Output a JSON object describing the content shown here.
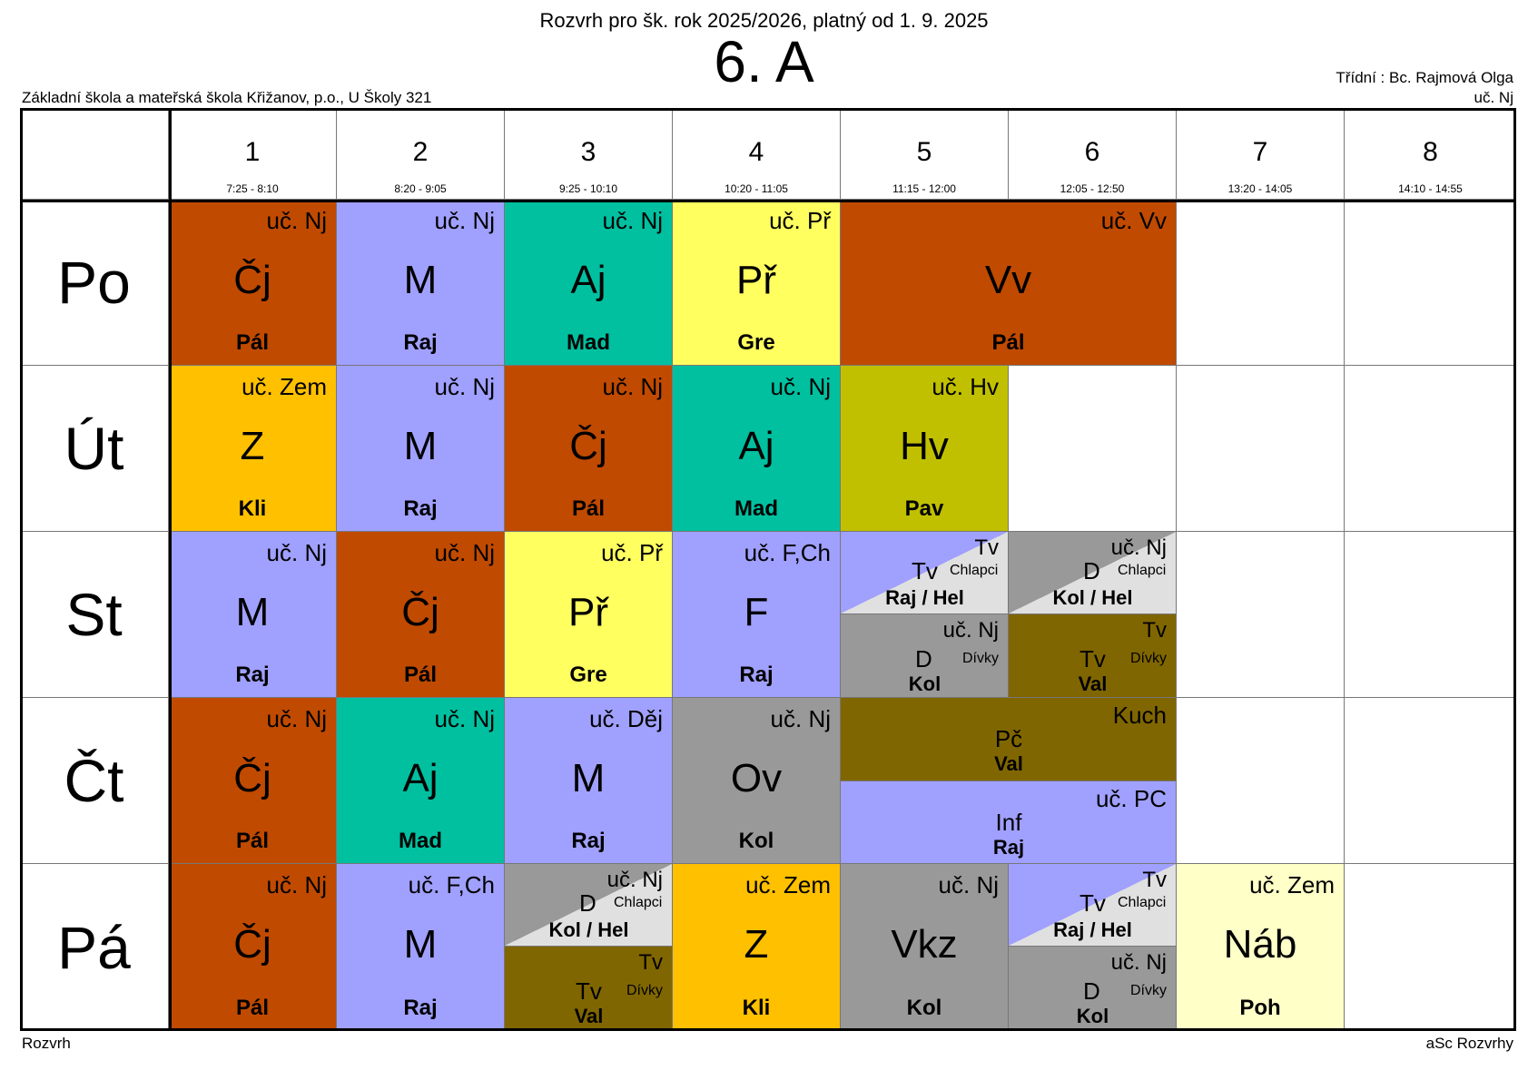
{
  "header": {
    "subtitle": "Rozvrh pro šk. rok 2025/2026, platný od 1. 9. 2025",
    "class_name": "6. A",
    "school": "Základní škola a mateřská škola Křižanov, p.o., U Školy 321",
    "class_teacher": "Třídní : Bc. Rajmová Olga",
    "class_room": "uč. Nj"
  },
  "periods": [
    {
      "num": "1",
      "time": "7:25 - 8:10"
    },
    {
      "num": "2",
      "time": "8:20 - 9:05"
    },
    {
      "num": "3",
      "time": "9:25 - 10:10"
    },
    {
      "num": "4",
      "time": "10:20 - 11:05"
    },
    {
      "num": "5",
      "time": "11:15 - 12:00"
    },
    {
      "num": "6",
      "time": "12:05 - 12:50"
    },
    {
      "num": "7",
      "time": "13:20 - 14:05"
    },
    {
      "num": "8",
      "time": "14:10 - 14:55"
    }
  ],
  "days": [
    "Po",
    "Út",
    "St",
    "Čt",
    "Pá"
  ],
  "colors": {
    "cj": "#c04a00",
    "m": "#a0a0ff",
    "aj": "#00c0a0",
    "pr": "#ffff60",
    "vv": "#c04a00",
    "z": "#ffc000",
    "hv": "#c0c000",
    "f": "#a0a0ff",
    "ov": "#a0a0a0",
    "gray": "#999999",
    "light": "#e0e0e0",
    "olive": "#806600",
    "nab": "#ffffc8"
  },
  "lessons": {
    "po": [
      {
        "room": "uč. Nj",
        "subject": "Čj",
        "teacher": "Pál"
      },
      {
        "room": "uč. Nj",
        "subject": "M",
        "teacher": "Raj"
      },
      {
        "room": "uč. Nj",
        "subject": "Aj",
        "teacher": "Mad"
      },
      {
        "room": "uč. Př",
        "subject": "Př",
        "teacher": "Gre"
      },
      {
        "room": "uč. Vv",
        "subject": "Vv",
        "teacher": "Pál"
      }
    ],
    "ut": [
      {
        "room": "uč. Zem",
        "subject": "Z",
        "teacher": "Kli"
      },
      {
        "room": "uč. Nj",
        "subject": "M",
        "teacher": "Raj"
      },
      {
        "room": "uč. Nj",
        "subject": "Čj",
        "teacher": "Pál"
      },
      {
        "room": "uč. Nj",
        "subject": "Aj",
        "teacher": "Mad"
      },
      {
        "room": "uč. Hv",
        "subject": "Hv",
        "teacher": "Pav"
      }
    ],
    "st": [
      {
        "room": "uč. Nj",
        "subject": "M",
        "teacher": "Raj"
      },
      {
        "room": "uč. Nj",
        "subject": "Čj",
        "teacher": "Pál"
      },
      {
        "room": "uč. Př",
        "subject": "Př",
        "teacher": "Gre"
      },
      {
        "room": "uč. F,Ch",
        "subject": "F",
        "teacher": "Raj"
      },
      {
        "top": {
          "room": "Tv",
          "subject": "Tv",
          "group": "Chlapci",
          "teacher": "Raj / Hel"
        },
        "bottom": {
          "room": "uč. Nj",
          "subject": "D",
          "group": "Dívky",
          "teacher": "Kol"
        }
      },
      {
        "top": {
          "room": "uč. Nj",
          "subject": "D",
          "group": "Chlapci",
          "teacher": "Kol / Hel"
        },
        "bottom": {
          "room": "Tv",
          "subject": "Tv",
          "group": "Dívky",
          "teacher": "Val"
        }
      }
    ],
    "ct": [
      {
        "room": "uč. Nj",
        "subject": "Čj",
        "teacher": "Pál"
      },
      {
        "room": "uč. Nj",
        "subject": "Aj",
        "teacher": "Mad"
      },
      {
        "room": "uč. Děj",
        "subject": "M",
        "teacher": "Raj"
      },
      {
        "room": "uč. Nj",
        "subject": "Ov",
        "teacher": "Kol"
      },
      {
        "top": {
          "room": "Kuch",
          "subject": "Pč",
          "teacher": "Val"
        },
        "bottom": {
          "room": "uč. PC",
          "subject": "Inf",
          "teacher": "Raj"
        }
      }
    ],
    "pa": [
      {
        "room": "uč. Nj",
        "subject": "Čj",
        "teacher": "Pál"
      },
      {
        "room": "uč. F,Ch",
        "subject": "M",
        "teacher": "Raj"
      },
      {
        "top": {
          "room": "uč. Nj",
          "subject": "D",
          "group": "Chlapci",
          "teacher": "Kol / Hel"
        },
        "bottom": {
          "room": "Tv",
          "subject": "Tv",
          "group": "Dívky",
          "teacher": "Val"
        }
      },
      {
        "room": "uč. Zem",
        "subject": "Z",
        "teacher": "Kli"
      },
      {
        "room": "uč. Nj",
        "subject": "Vkz",
        "teacher": "Kol"
      },
      {
        "top": {
          "room": "Tv",
          "subject": "Tv",
          "group": "Chlapci",
          "teacher": "Raj / Hel"
        },
        "bottom": {
          "room": "uč. Nj",
          "subject": "D",
          "group": "Dívky",
          "teacher": "Kol"
        }
      },
      {
        "room": "uč. Zem",
        "subject": "Náb",
        "teacher": "Poh"
      }
    ]
  },
  "footer": {
    "left": "Rozvrh",
    "right": "aSc Rozvrhy"
  }
}
